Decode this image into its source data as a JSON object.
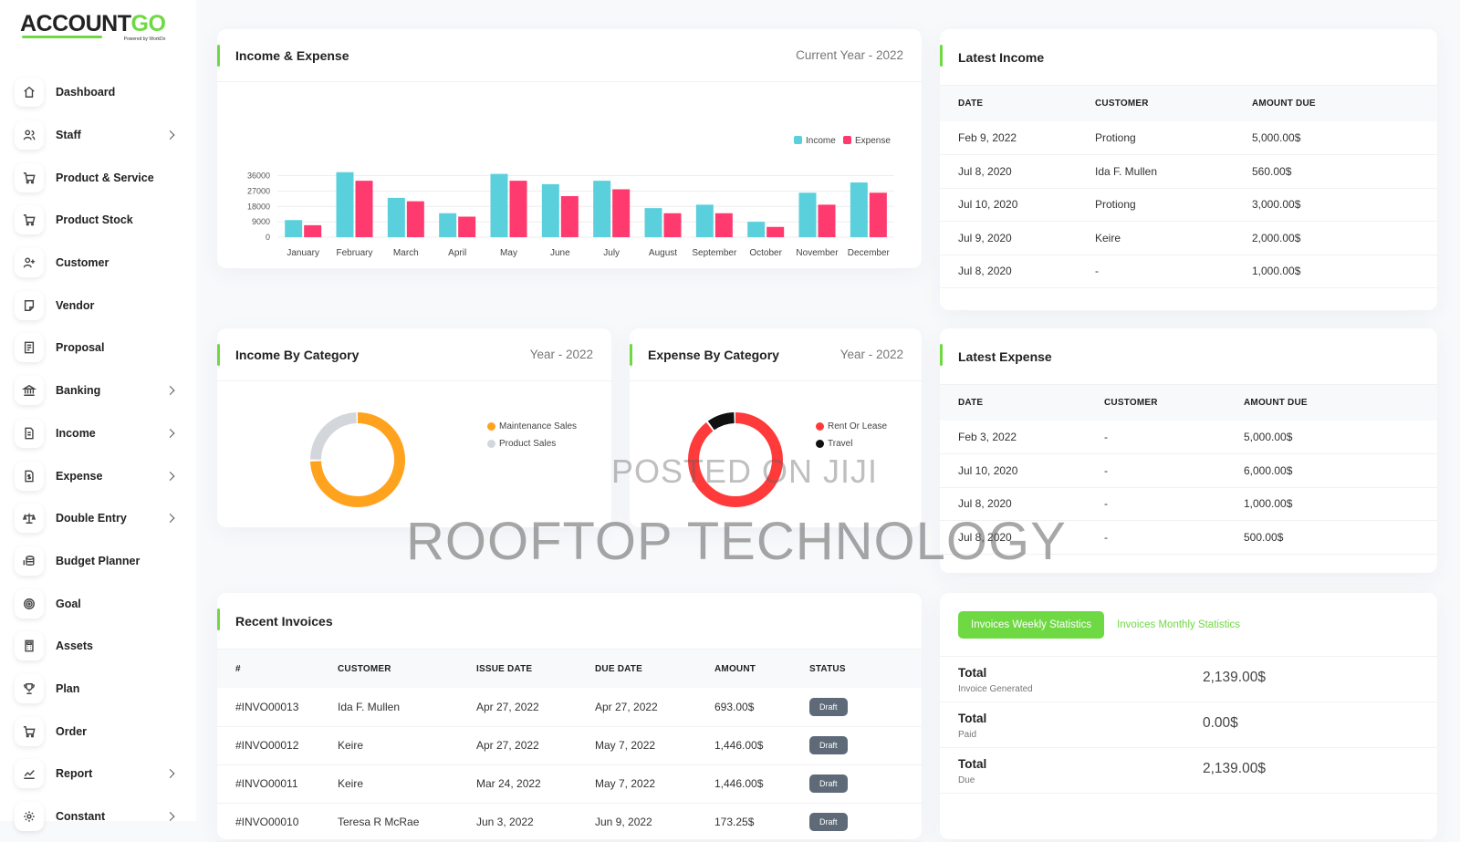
{
  "brand": {
    "logo_main": "ACCOUNT",
    "logo_accent": "GO",
    "logo_tagline": "Powered by WorkDo"
  },
  "sidebar": {
    "items": [
      {
        "label": "Dashboard",
        "icon": "home-icon",
        "has_submenu": false
      },
      {
        "label": "Staff",
        "icon": "users-icon",
        "has_submenu": true
      },
      {
        "label": "Product & Service",
        "icon": "cart-icon",
        "has_submenu": false
      },
      {
        "label": "Product Stock",
        "icon": "cart-icon",
        "has_submenu": false
      },
      {
        "label": "Customer",
        "icon": "user-plus-icon",
        "has_submenu": false
      },
      {
        "label": "Vendor",
        "icon": "note-icon",
        "has_submenu": false
      },
      {
        "label": "Proposal",
        "icon": "receipt-icon",
        "has_submenu": false
      },
      {
        "label": "Banking",
        "icon": "bank-icon",
        "has_submenu": true
      },
      {
        "label": "Income",
        "icon": "file-invoice-icon",
        "has_submenu": true
      },
      {
        "label": "Expense",
        "icon": "file-dollar-icon",
        "has_submenu": true
      },
      {
        "label": "Double Entry",
        "icon": "scale-icon",
        "has_submenu": true
      },
      {
        "label": "Budget Planner",
        "icon": "coins-icon",
        "has_submenu": false
      },
      {
        "label": "Goal",
        "icon": "target-icon",
        "has_submenu": false
      },
      {
        "label": "Assets",
        "icon": "calculator-icon",
        "has_submenu": false
      },
      {
        "label": "Plan",
        "icon": "trophy-icon",
        "has_submenu": false
      },
      {
        "label": "Order",
        "icon": "cart-icon",
        "has_submenu": false
      },
      {
        "label": "Report",
        "icon": "chart-line-icon",
        "has_submenu": true
      },
      {
        "label": "Constant",
        "icon": "gear-icon",
        "has_submenu": true
      }
    ]
  },
  "income_expense": {
    "title": "Income & Expense",
    "period": "Current Year - 2022"
  },
  "chart_data": [
    {
      "type": "bar",
      "categories": [
        "January",
        "February",
        "March",
        "April",
        "May",
        "June",
        "July",
        "August",
        "September",
        "October",
        "November",
        "December"
      ],
      "series": [
        {
          "name": "Income",
          "color": "#5ad0dd",
          "values": [
            10000,
            38000,
            23000,
            14000,
            37000,
            31000,
            33000,
            17000,
            19000,
            9000,
            26000,
            32000
          ]
        },
        {
          "name": "Expense",
          "color": "#ff3a6e",
          "values": [
            7000,
            33000,
            21000,
            12000,
            33000,
            24000,
            28000,
            14000,
            14000,
            6000,
            19000,
            26000
          ]
        }
      ],
      "ytick_labels": [
        "0",
        "9000",
        "18000",
        "27000",
        "36000"
      ],
      "ylim": [
        0,
        40000
      ],
      "legend_position": "top-right",
      "grid": true
    },
    {
      "type": "pie",
      "donut": true,
      "labels": [
        "Maintenance Sales",
        "Product Sales"
      ],
      "values": [
        75,
        25
      ],
      "colors": [
        "#ffa21d",
        "#d3d6db"
      ],
      "legend_position": "right"
    },
    {
      "type": "pie",
      "donut": true,
      "labels": [
        "Rent Or Lease",
        "Travel"
      ],
      "values": [
        90,
        10
      ],
      "colors": [
        "#ff3a3a",
        "#111111"
      ],
      "legend_position": "right"
    }
  ],
  "income_by_category": {
    "title": "Income By Category",
    "period": "Year - 2022"
  },
  "expense_by_category": {
    "title": "Expense By Category",
    "period": "Year - 2022"
  },
  "latest_income": {
    "title": "Latest Income",
    "columns": [
      "DATE",
      "CUSTOMER",
      "AMOUNT DUE"
    ],
    "rows": [
      [
        "Feb 9, 2022",
        "Protiong",
        "5,000.00$"
      ],
      [
        "Jul 8, 2020",
        "Ida F. Mullen",
        "560.00$"
      ],
      [
        "Jul 10, 2020",
        "Protiong",
        "3,000.00$"
      ],
      [
        "Jul 9, 2020",
        "Keire",
        "2,000.00$"
      ],
      [
        "Jul 8, 2020",
        "-",
        "1,000.00$"
      ]
    ]
  },
  "latest_expense": {
    "title": "Latest Expense",
    "columns": [
      "DATE",
      "CUSTOMER",
      "AMOUNT DUE"
    ],
    "rows": [
      [
        "Feb 3, 2022",
        "-",
        "5,000.00$"
      ],
      [
        "Jul 10, 2020",
        "-",
        "6,000.00$"
      ],
      [
        "Jul 8, 2020",
        "-",
        "1,000.00$"
      ],
      [
        "Jul 8, 2020",
        "-",
        "500.00$"
      ]
    ]
  },
  "recent_invoices": {
    "title": "Recent Invoices",
    "columns": [
      "#",
      "CUSTOMER",
      "ISSUE DATE",
      "DUE DATE",
      "AMOUNT",
      "STATUS"
    ],
    "rows": [
      [
        "#INVO00013",
        "Ida F. Mullen",
        "Apr 27, 2022",
        "Apr 27, 2022",
        "693.00$",
        "Draft"
      ],
      [
        "#INVO00012",
        "Keire",
        "Apr 27, 2022",
        "May 7, 2022",
        "1,446.00$",
        "Draft"
      ],
      [
        "#INVO00011",
        "Keire",
        "Mar 24, 2022",
        "May 7, 2022",
        "1,446.00$",
        "Draft"
      ],
      [
        "#INVO00010",
        "Teresa R McRae",
        "Jun 3, 2022",
        "Jun 9, 2022",
        "173.25$",
        "Draft"
      ]
    ]
  },
  "invoice_stats": {
    "tab_active": "Invoices Weekly Statistics",
    "tab_inactive": "Invoices Monthly Statistics",
    "rows": [
      {
        "title": "Total",
        "subtitle": "Invoice Generated",
        "value": "2,139.00$"
      },
      {
        "title": "Total",
        "subtitle": "Paid",
        "value": "0.00$"
      },
      {
        "title": "Total",
        "subtitle": "Due",
        "value": "2,139.00$"
      }
    ]
  },
  "watermark": {
    "line1": "POSTED ON JIJI",
    "line2": "ROOFTOP TECHNOLOGY"
  }
}
